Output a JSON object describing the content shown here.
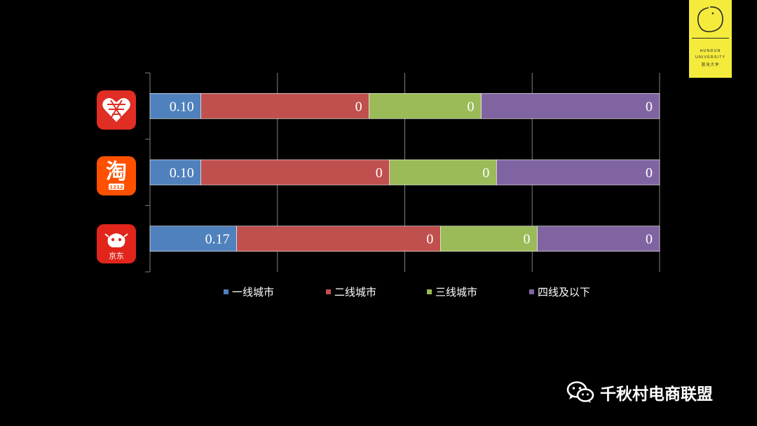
{
  "chart_data": {
    "type": "bar",
    "orientation": "horizontal",
    "stacked": true,
    "categories": [
      "拼多多",
      "淘宝",
      "京东"
    ],
    "series": [
      {
        "name": "一线城市",
        "color": "#4f81bd",
        "values": [
          0.1,
          0.1,
          0.17
        ],
        "labels": [
          "0.10",
          "0.10",
          "0.17"
        ]
      },
      {
        "name": "二线城市",
        "color": "#c0504d",
        "values": [
          0.33,
          0.37,
          0.4
        ],
        "labels": [
          "0",
          "0",
          "0"
        ]
      },
      {
        "name": "三线城市",
        "color": "#9bbb59",
        "values": [
          0.22,
          0.21,
          0.19
        ],
        "labels": [
          "0",
          "0",
          "0"
        ]
      },
      {
        "name": "四线及以下",
        "color": "#8064a2",
        "values": [
          0.35,
          0.32,
          0.24
        ],
        "labels": [
          "0",
          "0",
          "0"
        ]
      }
    ],
    "xlim": [
      0,
      1
    ],
    "grid": true,
    "legend": "bottom"
  },
  "legend": {
    "items": [
      {
        "label": "一线城市",
        "color": "#4f81bd"
      },
      {
        "label": "二线城市",
        "color": "#c0504d"
      },
      {
        "label": "三线城市",
        "color": "#9bbb59"
      },
      {
        "label": "四线及以下",
        "color": "#8064a2"
      }
    ]
  },
  "icons": {
    "row1": "pinduoduo-app-icon",
    "row2": "taobao-app-icon",
    "row3": "jd-app-icon"
  },
  "logo": {
    "line1": "HUNDUN",
    "line2": "UNIVERSITY",
    "line3": "混沌大学"
  },
  "app_icon_text": {
    "taobao_char": "淘",
    "taobao_sub": "1212",
    "jd_sub": "京东"
  },
  "watermark": {
    "text": "千秋村电商联盟"
  }
}
